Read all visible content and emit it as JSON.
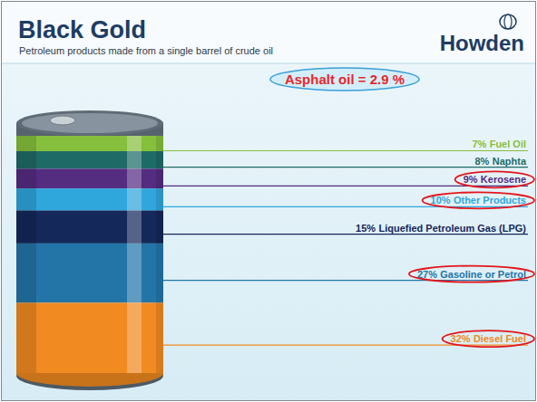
{
  "chart_data": {
    "type": "bar",
    "stacked": true,
    "title": "Black Gold",
    "subtitle": "Petroleum products made from a single barrel of crude oil",
    "logo": "Howden",
    "annotations": [
      "Asphalt oil = 2.9 %"
    ],
    "categories": [
      null
    ],
    "ylim": [
      0,
      108
    ],
    "tick_labels": false,
    "data_labels": true,
    "series": [
      {
        "name": "Fuel Oil",
        "color": "#86bf3c",
        "values": [
          7
        ],
        "value_labels": [
          "7%"
        ]
      },
      {
        "name": "Naphta",
        "color": "#1e6b67",
        "values": [
          8
        ],
        "value_labels": [
          "8%"
        ]
      },
      {
        "name": "Kerosene",
        "color": "#542c80",
        "values": [
          9
        ],
        "value_labels": [
          "9%"
        ]
      },
      {
        "name": "Other Products",
        "color": "#2fa6dc",
        "values": [
          10
        ],
        "value_labels": [
          "10%"
        ]
      },
      {
        "name": "Liquefied Petroleum Gas (LPG)",
        "color": "#15285a",
        "values": [
          15
        ],
        "value_labels": [
          "15%"
        ]
      },
      {
        "name": "Gasoline or Petrol",
        "color": "#2375a8",
        "values": [
          27
        ],
        "value_labels": [
          "27%"
        ]
      },
      {
        "name": "Diesel Fuel",
        "color": "#f08a21",
        "values": [
          32
        ],
        "value_labels": [
          "32%"
        ]
      }
    ]
  }
}
